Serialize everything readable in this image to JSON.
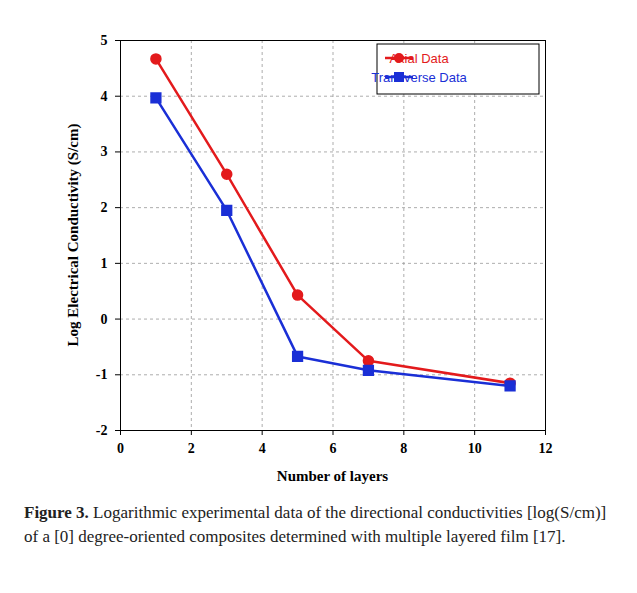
{
  "chart_data": {
    "type": "line",
    "caption": "Figure 3. Logarithmic experimental data of the directional conductivities [log(S/cm)] of a [0] degree-oriented composites determined with multiple layered film [17].",
    "x_label": "Number of layers",
    "y_label": "Log Electrical Conductivity (S/cm)",
    "x": [
      1,
      3,
      5,
      7,
      11
    ],
    "series": [
      {
        "name": "Axial Data",
        "color": "#e31a1c",
        "marker": "circle",
        "values": [
          4.67,
          2.6,
          0.43,
          -0.75,
          -1.15
        ]
      },
      {
        "name": "Transverse Data",
        "color": "#1a2fd6",
        "marker": "square",
        "values": [
          3.97,
          1.95,
          -0.67,
          -0.92,
          -1.2
        ]
      }
    ],
    "xlim": [
      0,
      12
    ],
    "xticks": [
      0,
      2,
      4,
      6,
      8,
      10,
      12
    ],
    "ylim": [
      -2,
      5
    ],
    "yticks": [
      -2,
      -1,
      0,
      1,
      2,
      3,
      4,
      5
    ],
    "grid": true,
    "legend": "top-right"
  }
}
